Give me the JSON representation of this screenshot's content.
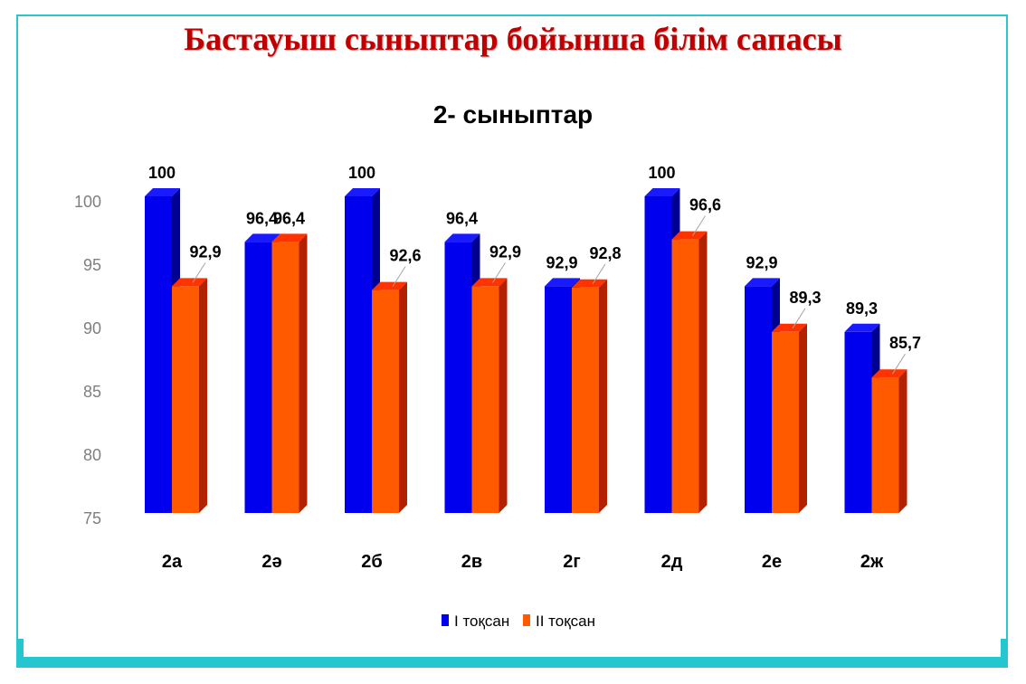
{
  "slide": {
    "title": "Бастауыш сыныптар бойынша білім сапасы"
  },
  "colors": {
    "series1_front": "#0000ee",
    "series1_top": "#1a1aff",
    "series1_side": "#000090",
    "series2_front": "#ff5a00",
    "series2_top": "#ff3300",
    "series2_side": "#b32200",
    "frame": "#26c6d0",
    "title": "#c00000"
  },
  "chart_data": {
    "type": "bar",
    "title": "2- сыныптар",
    "categories": [
      "2а",
      "2ә",
      "2б",
      "2в",
      "2г",
      "2д",
      "2е",
      "2ж"
    ],
    "series": [
      {
        "name": "I тоқсан",
        "values": [
          100,
          96.4,
          100,
          96.4,
          92.9,
          100,
          92.9,
          89.3
        ],
        "labels": [
          "100",
          "96,4",
          "100",
          "96,4",
          "92,9",
          "100",
          "92,9",
          "89,3"
        ]
      },
      {
        "name": "II тоқсан",
        "values": [
          92.9,
          96.4,
          92.6,
          92.9,
          92.8,
          96.6,
          89.3,
          85.7
        ],
        "labels": [
          "92,9",
          "96,4",
          "92,6",
          "92,9",
          "92,8",
          "96,6",
          "89,3",
          "85,7"
        ]
      }
    ],
    "ylim": [
      75,
      100
    ],
    "yticks": [
      75,
      80,
      85,
      90,
      95,
      100
    ],
    "grid": false,
    "legend": "bottom"
  }
}
